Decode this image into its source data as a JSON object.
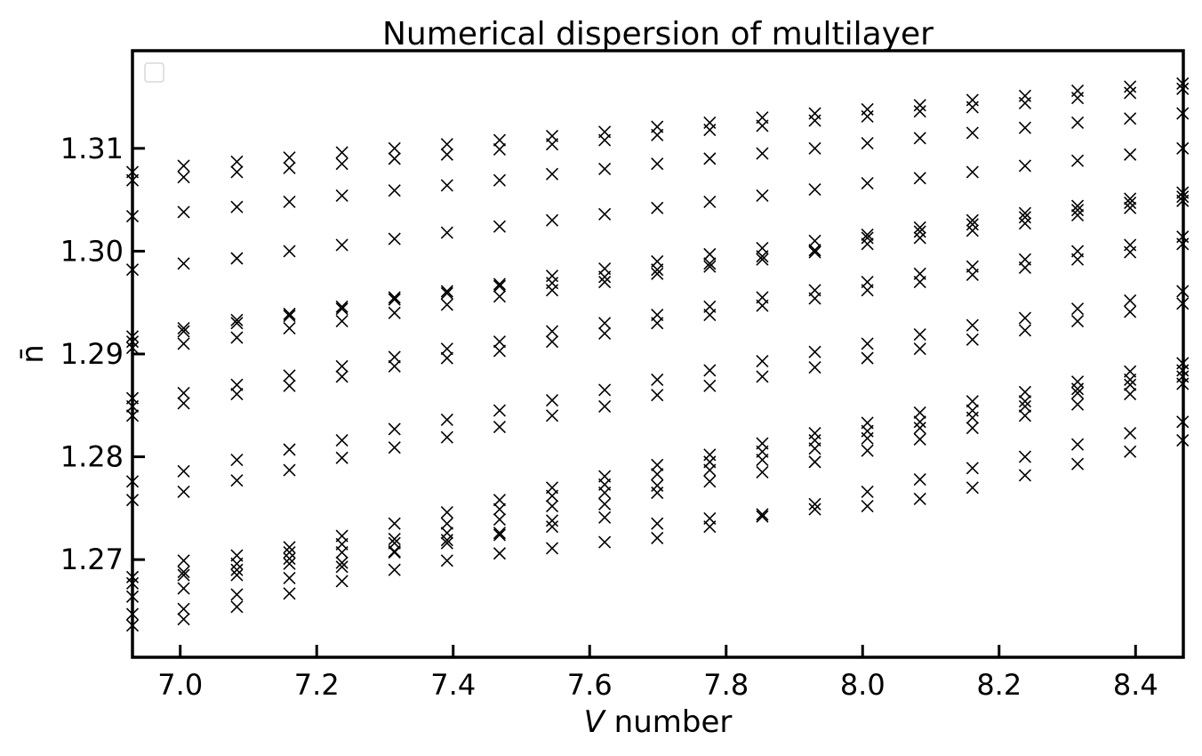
{
  "chart_data": {
    "type": "scatter",
    "title": "Numerical dispersion of multilayer",
    "xlabel_italic": "V",
    "xlabel_rest": " number",
    "ylabel": "n̄",
    "xlim": [
      6.93,
      8.47
    ],
    "ylim": [
      1.2605,
      1.3195
    ],
    "xticks": [
      7.0,
      7.2,
      7.4,
      7.6,
      7.8,
      8.0,
      8.2,
      8.4
    ],
    "xtick_labels": [
      "7.0",
      "7.2",
      "7.4",
      "7.6",
      "7.8",
      "8.0",
      "8.2",
      "8.4"
    ],
    "yticks": [
      1.27,
      1.28,
      1.29,
      1.3,
      1.31
    ],
    "ytick_labels": [
      "1.27",
      "1.28",
      "1.29",
      "1.30",
      "1.31"
    ],
    "legend": "upper-left (empty)",
    "grid": false,
    "marker": "x",
    "color": "#000000",
    "series": [
      {
        "x": [
          6.93,
          7.005,
          7.083,
          7.16,
          7.237,
          7.314,
          7.391,
          7.468,
          7.545,
          7.622,
          7.699,
          7.776,
          7.853,
          7.93,
          8.007,
          8.084,
          8.161,
          8.238,
          8.315,
          8.392,
          8.469
        ],
        "y": [
          [
            1.3077,
            1.3069,
            1.3034,
            1.2982,
            1.2917,
            1.2912,
            1.2906,
            1.2857,
            1.2849,
            1.284,
            1.2776,
            1.2758,
            1.2683,
            1.2677,
            1.2664,
            1.2647,
            1.2636
          ],
          [
            1.3083,
            1.3072,
            1.3038,
            1.2988,
            1.2925,
            1.2922,
            1.291,
            1.2862,
            1.2852,
            1.2786,
            1.2766,
            1.2699,
            1.2688,
            1.2685,
            1.2672,
            1.2652,
            1.2642
          ],
          [
            1.3087,
            1.3077,
            1.3043,
            1.2993,
            1.2933,
            1.293,
            1.2916,
            1.287,
            1.2861,
            1.2797,
            1.2777,
            1.2704,
            1.2696,
            1.269,
            1.2685,
            1.2666,
            1.2654
          ],
          [
            1.3091,
            1.3081,
            1.3048,
            1.3,
            1.2939,
            1.2937,
            1.2925,
            1.2879,
            1.2869,
            1.2807,
            1.2787,
            1.2712,
            1.2707,
            1.2701,
            1.2696,
            1.2682,
            1.2667
          ],
          [
            1.3096,
            1.3085,
            1.3054,
            1.3006,
            1.2946,
            1.2944,
            1.2932,
            1.2888,
            1.2878,
            1.2816,
            1.2799,
            1.2723,
            1.2715,
            1.2707,
            1.2697,
            1.2693,
            1.2679
          ],
          [
            1.31,
            1.309,
            1.3059,
            1.3012,
            1.2955,
            1.2953,
            1.294,
            1.2897,
            1.2888,
            1.2827,
            1.2809,
            1.2735,
            1.272,
            1.2716,
            1.2708,
            1.2707,
            1.269
          ],
          [
            1.3104,
            1.3094,
            1.3064,
            1.3018,
            1.2961,
            1.2959,
            1.2948,
            1.2905,
            1.2896,
            1.2836,
            1.2819,
            1.2746,
            1.2735,
            1.2726,
            1.2719,
            1.2716,
            1.2699
          ],
          [
            1.3108,
            1.3099,
            1.3069,
            1.3024,
            1.2968,
            1.2966,
            1.2956,
            1.2912,
            1.2903,
            1.2845,
            1.2829,
            1.2758,
            1.2749,
            1.2739,
            1.2726,
            1.2724,
            1.2706
          ],
          [
            1.3112,
            1.3104,
            1.3075,
            1.303,
            1.2976,
            1.2969,
            1.2962,
            1.2922,
            1.2912,
            1.2855,
            1.284,
            1.277,
            1.2762,
            1.2752,
            1.2738,
            1.2732,
            1.2711
          ],
          [
            1.3116,
            1.3108,
            1.308,
            1.3036,
            1.2983,
            1.2975,
            1.297,
            1.293,
            1.292,
            1.2865,
            1.2849,
            1.2781,
            1.2773,
            1.2765,
            1.2754,
            1.2741,
            1.2717
          ],
          [
            1.3121,
            1.3113,
            1.3085,
            1.3042,
            1.299,
            1.2982,
            1.2978,
            1.2938,
            1.293,
            1.2875,
            1.286,
            1.2792,
            1.2783,
            1.2772,
            1.2765,
            1.2735,
            1.2721
          ],
          [
            1.3125,
            1.3118,
            1.309,
            1.3048,
            1.2997,
            1.2988,
            1.2985,
            1.2946,
            1.2938,
            1.2884,
            1.2869,
            1.2802,
            1.2795,
            1.2787,
            1.2776,
            1.274,
            1.2732
          ],
          [
            1.313,
            1.3122,
            1.3095,
            1.3054,
            1.3003,
            1.2995,
            1.2992,
            1.2955,
            1.2947,
            1.2893,
            1.2878,
            1.2813,
            1.2805,
            1.2797,
            1.2785,
            1.2744,
            1.2742
          ],
          [
            1.3134,
            1.3127,
            1.31,
            1.306,
            1.301,
            1.3001,
            1.2999,
            1.2962,
            1.2954,
            1.2902,
            1.2887,
            1.2823,
            1.2816,
            1.2808,
            1.2795,
            1.2754,
            1.2749
          ],
          [
            1.3138,
            1.3131,
            1.3105,
            1.3066,
            1.3016,
            1.3013,
            1.3007,
            1.297,
            1.2962,
            1.291,
            1.2896,
            1.2833,
            1.2825,
            1.2818,
            1.2806,
            1.2766,
            1.2752
          ],
          [
            1.3142,
            1.3136,
            1.311,
            1.3071,
            1.3023,
            1.3019,
            1.3013,
            1.2978,
            1.297,
            1.2919,
            1.2905,
            1.2843,
            1.2834,
            1.2828,
            1.2817,
            1.2778,
            1.2759
          ],
          [
            1.3147,
            1.314,
            1.3115,
            1.3077,
            1.303,
            1.3026,
            1.302,
            1.2985,
            1.2977,
            1.2928,
            1.2914,
            1.2854,
            1.2845,
            1.2838,
            1.2828,
            1.2789,
            1.277
          ],
          [
            1.3151,
            1.3144,
            1.312,
            1.3083,
            1.3037,
            1.3033,
            1.3027,
            1.2992,
            1.2984,
            1.2935,
            1.2923,
            1.2863,
            1.2854,
            1.2849,
            1.284,
            1.28,
            1.2782
          ],
          [
            1.3156,
            1.3149,
            1.3125,
            1.3088,
            1.3044,
            1.304,
            1.3035,
            1.3,
            1.2992,
            1.2944,
            1.2932,
            1.2873,
            1.2866,
            1.2862,
            1.2851,
            1.2812,
            1.2793
          ],
          [
            1.316,
            1.3154,
            1.3129,
            1.3094,
            1.3051,
            1.3047,
            1.3042,
            1.3006,
            1.2999,
            1.2952,
            1.2941,
            1.2883,
            1.2875,
            1.287,
            1.2861,
            1.2823,
            1.2805
          ],
          [
            1.3163,
            1.3158,
            1.3134,
            1.31,
            1.3057,
            1.3053,
            1.3049,
            1.3014,
            1.3007,
            1.2961,
            1.2949,
            1.2891,
            1.2884,
            1.2878,
            1.2871,
            1.2834,
            1.2816
          ]
        ]
      }
    ]
  }
}
